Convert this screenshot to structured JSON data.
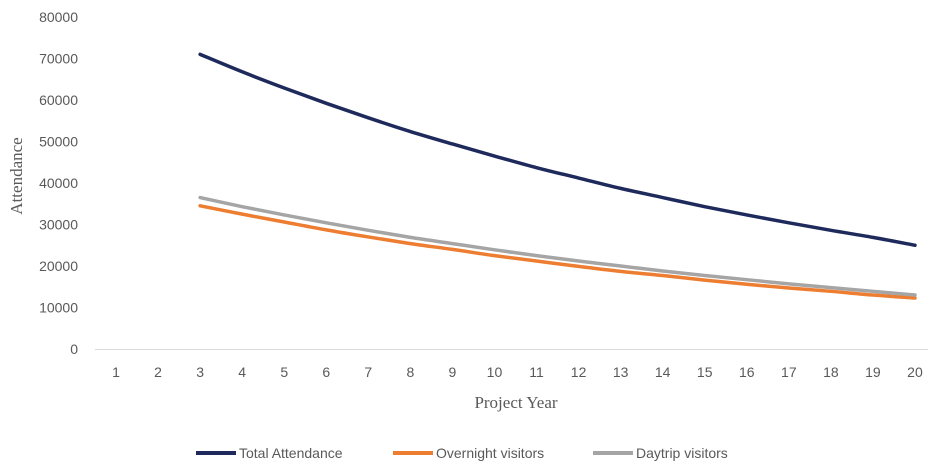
{
  "chart_data": {
    "type": "line",
    "title": "",
    "xlabel": "Project Year",
    "ylabel": "Attendance",
    "categories": [
      "1",
      "2",
      "3",
      "4",
      "5",
      "6",
      "7",
      "8",
      "9",
      "10",
      "11",
      "12",
      "13",
      "14",
      "15",
      "16",
      "17",
      "18",
      "19",
      "20"
    ],
    "ylim": [
      0,
      80000
    ],
    "yticks": [
      "0",
      "10000",
      "20000",
      "30000",
      "40000",
      "50000",
      "60000",
      "70000",
      "80000"
    ],
    "grid": false,
    "legend": "bottom",
    "series": [
      {
        "name": "Total Attendance",
        "color": "#1F2A5C",
        "values": [
          null,
          null,
          71000,
          66800,
          62900,
          59200,
          55700,
          52400,
          49400,
          46500,
          43700,
          41200,
          38700,
          36500,
          34300,
          32300,
          30400,
          28600,
          26900,
          25000
        ]
      },
      {
        "name": "Overnight visitors",
        "color": "#ED7D31",
        "values": [
          null,
          null,
          34500,
          32500,
          30600,
          28700,
          27000,
          25400,
          24000,
          22500,
          21200,
          19900,
          18700,
          17700,
          16600,
          15600,
          14700,
          13900,
          13000,
          12300
        ]
      },
      {
        "name": "Daytrip visitors",
        "color": "#A5A5A5",
        "values": [
          null,
          null,
          36500,
          34300,
          32300,
          30400,
          28600,
          26900,
          25400,
          23900,
          22500,
          21200,
          20000,
          18800,
          17700,
          16700,
          15700,
          14800,
          13900,
          13000
        ]
      }
    ]
  }
}
